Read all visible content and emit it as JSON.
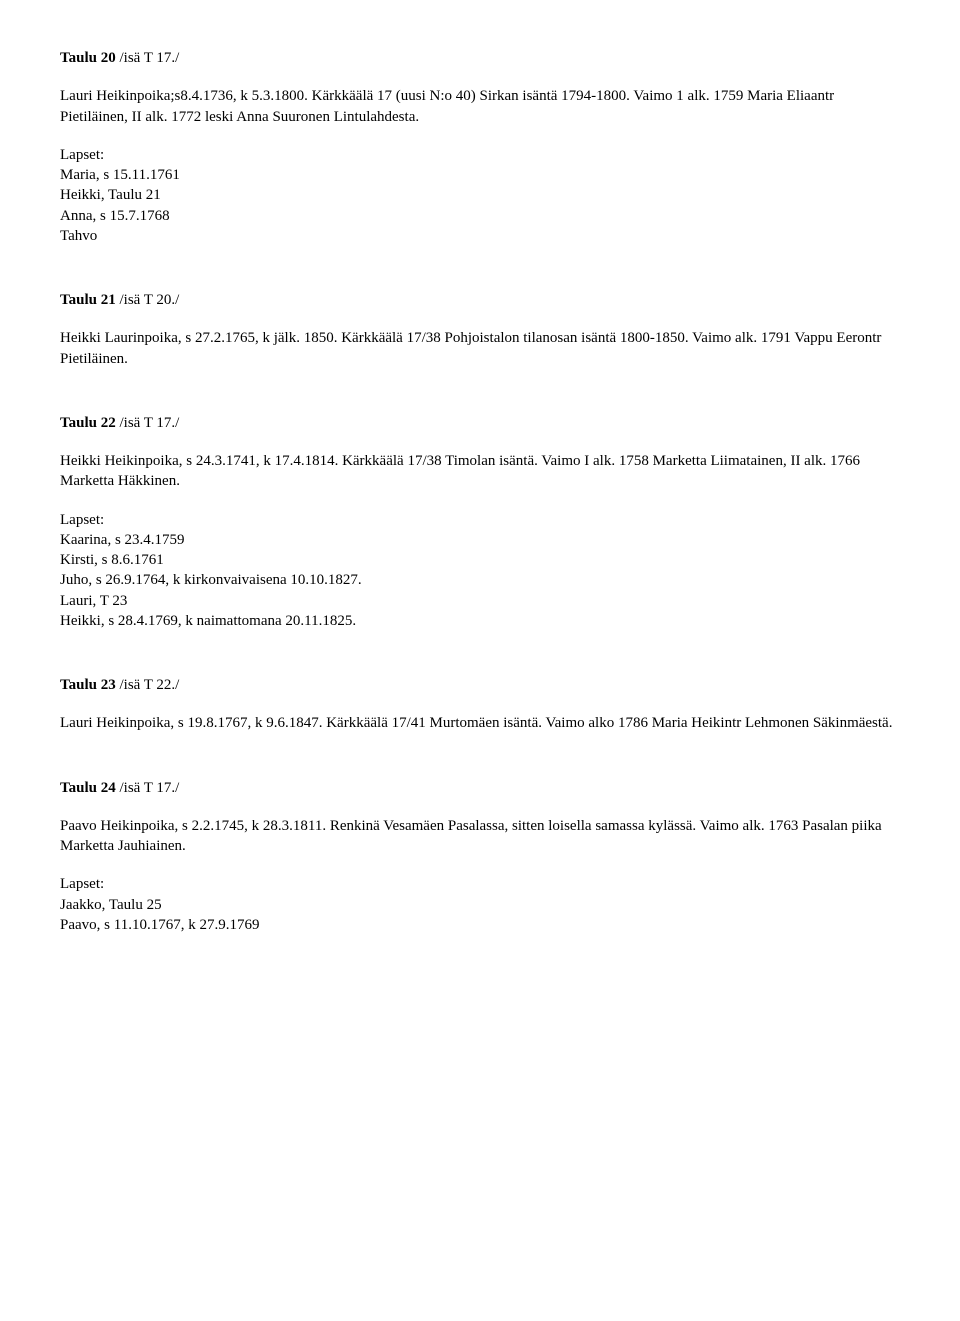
{
  "sections": [
    {
      "heading_bold": "Taulu 20",
      "heading_rest": " /isä T 17./",
      "para": "Lauri Heikinpoika;s8.4.1736, k 5.3.1800. Kärkkäälä 17 (uusi N:o 40) Sirkan isäntä 1794-1800. Vaimo 1 alk. 1759 Maria Eliaantr Pietiläinen, II alk. 1772 leski Anna Suuronen Lintulahdesta.",
      "list_label": "Lapset:",
      "list_items": [
        "Maria, s 15.11.1761",
        "Heikki, Taulu 21",
        "Anna, s 15.7.1768",
        "Tahvo"
      ]
    },
    {
      "heading_bold": "Taulu 21",
      "heading_rest": " /isä T 20./",
      "para": "Heikki Laurinpoika, s 27.2.1765, k jälk. 1850. Kärkkäälä 17/38 Pohjoistalon tilanosan isäntä 1800-1850. Vaimo alk. 1791 Vappu Eerontr Pietiläinen.",
      "list_label": "",
      "list_items": []
    },
    {
      "heading_bold": "Taulu 22",
      "heading_rest": " /isä T 17./",
      "para": "Heikki Heikinpoika, s 24.3.1741, k 17.4.1814. Kärkkäälä 17/38 Timolan isäntä. Vaimo I alk. 1758 Marketta Liimatainen, II alk. 1766 Marketta Häkkinen.",
      "list_label": "Lapset:",
      "list_items": [
        "Kaarina, s 23.4.1759",
        "Kirsti, s 8.6.1761",
        "Juho, s 26.9.1764, k kirkonvaivaisena 10.10.1827.",
        "Lauri, T 23",
        "Heikki, s 28.4.1769, k naimattomana 20.11.1825."
      ]
    },
    {
      "heading_bold": "Taulu 23",
      "heading_rest": " /isä T 22./",
      "para": "Lauri Heikinpoika, s 19.8.1767, k 9.6.1847. Kärkkäälä 17/41 Murtomäen isäntä. Vaimo alko 1786 Maria Heikintr Lehmonen Säkinmäestä.",
      "list_label": "",
      "list_items": []
    },
    {
      "heading_bold": "Taulu 24",
      "heading_rest": " /isä T 17./",
      "para": "Paavo Heikinpoika, s 2.2.1745, k 28.3.1811. Renkinä Vesamäen Pasalassa, sitten loisella samassa kylässä. Vaimo alk. 1763 Pasalan piika Marketta Jauhiainen.",
      "list_label": "Lapset:",
      "list_items": [
        "Jaakko, Taulu 25",
        "Paavo, s 11.10.1767, k 27.9.1769"
      ]
    }
  ]
}
